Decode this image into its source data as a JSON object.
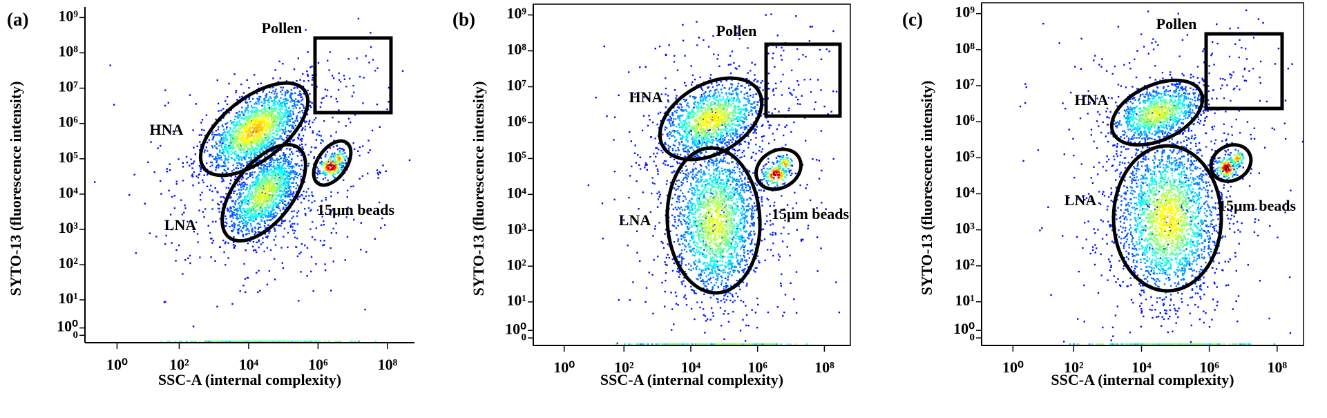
{
  "chart_data": [
    {
      "type": "density",
      "title": "(a)",
      "xlabel": "SSC-A (internal complexity)",
      "ylabel": "SYTO-13 (fluorescence intensity)",
      "annotations": [
        "Pollen",
        "HNA",
        "LNA",
        "15μm beads"
      ],
      "frame": false,
      "xscale": "asinh",
      "yscale": "asinh",
      "xlim": [
        -5,
        600000000
      ],
      "ylim": [
        -1,
        2000000000
      ],
      "xticks": [
        {
          "value": 1,
          "label": "10⁰"
        },
        {
          "value": 100,
          "label": "10²"
        },
        {
          "value": 10000,
          "label": "10⁴"
        },
        {
          "value": 1000000,
          "label": "10⁶"
        },
        {
          "value": 100000000,
          "label": "10⁸"
        }
      ],
      "yticks": [
        {
          "value": 1000000000,
          "label": "10⁹"
        },
        {
          "value": 100000000,
          "label": "10⁸"
        },
        {
          "value": 10000000,
          "label": "10⁷"
        },
        {
          "value": 1000000,
          "label": "10⁶"
        },
        {
          "value": 100000,
          "label": "10⁵"
        },
        {
          "value": 10000,
          "label": "10⁴"
        },
        {
          "value": 1000,
          "label": "10³"
        },
        {
          "value": 100,
          "label": "10²"
        },
        {
          "value": 10,
          "label": "10¹"
        },
        0,
        {
          "value": 1,
          "label": "10⁰"
        }
      ]
    },
    {
      "type": "density",
      "title": "(b)",
      "xlabel": "SSC-A (internal complexity)",
      "ylabel": "SYTO-13 (fluorescence intensity)",
      "annotations": [
        "Pollen",
        "HNA",
        "LNA",
        "15μm beads"
      ],
      "frame": true,
      "xscale": "asinh",
      "yscale": "asinh",
      "xlim": [
        -5,
        600000000
      ],
      "ylim": [
        -1,
        2000000000
      ],
      "xticks": [
        {
          "value": 1,
          "label": "10⁰"
        },
        {
          "value": 100,
          "label": "10²"
        },
        {
          "value": 10000,
          "label": "10⁴"
        },
        {
          "value": 1000000,
          "label": "10⁶"
        },
        {
          "value": 100000000,
          "label": "10⁸"
        }
      ],
      "yticks": [
        {
          "value": 1000000000,
          "label": "10⁹"
        },
        {
          "value": 100000000,
          "label": "10⁸"
        },
        {
          "value": 10000000,
          "label": "10⁷"
        },
        {
          "value": 1000000,
          "label": "10⁶"
        },
        {
          "value": 100000,
          "label": "10⁵"
        },
        {
          "value": 10000,
          "label": "10⁴"
        },
        {
          "value": 1000,
          "label": "10³"
        },
        {
          "value": 100,
          "label": "10²"
        },
        {
          "value": 10,
          "label": "10¹"
        },
        0,
        {
          "value": 1,
          "label": "10⁰"
        }
      ]
    },
    {
      "type": "density",
      "title": "(c)",
      "xlabel": "SSC-A (internal complexity)",
      "ylabel": "SYTO-13 (fluorescence intensity)",
      "annotations": [
        "Pollen",
        "HNA",
        "LNA",
        "15μm beads"
      ],
      "frame": true,
      "xscale": "asinh",
      "yscale": "asinh",
      "xlim": [
        -5,
        600000000
      ],
      "ylim": [
        -1,
        2000000000
      ],
      "xticks": [
        {
          "value": 1,
          "label": "10⁰"
        },
        {
          "value": 100,
          "label": "10²"
        },
        {
          "value": 10000,
          "label": "10⁴"
        },
        {
          "value": 1000000,
          "label": "10⁶"
        },
        {
          "value": 100000000,
          "label": "10⁸"
        }
      ],
      "yticks": [
        {
          "value": 1000000000,
          "label": "10⁹"
        },
        {
          "value": 100000000,
          "label": "10⁸"
        },
        {
          "value": 10000000,
          "label": "10⁷"
        },
        {
          "value": 1000000,
          "label": "10⁶"
        },
        {
          "value": 100000,
          "label": "10⁵"
        },
        {
          "value": 10000,
          "label": "10⁴"
        },
        {
          "value": 1000,
          "label": "10³"
        },
        {
          "value": 100,
          "label": "10²"
        },
        {
          "value": 10,
          "label": "10¹"
        },
        0,
        {
          "value": 1,
          "label": "10⁰"
        }
      ]
    }
  ]
}
